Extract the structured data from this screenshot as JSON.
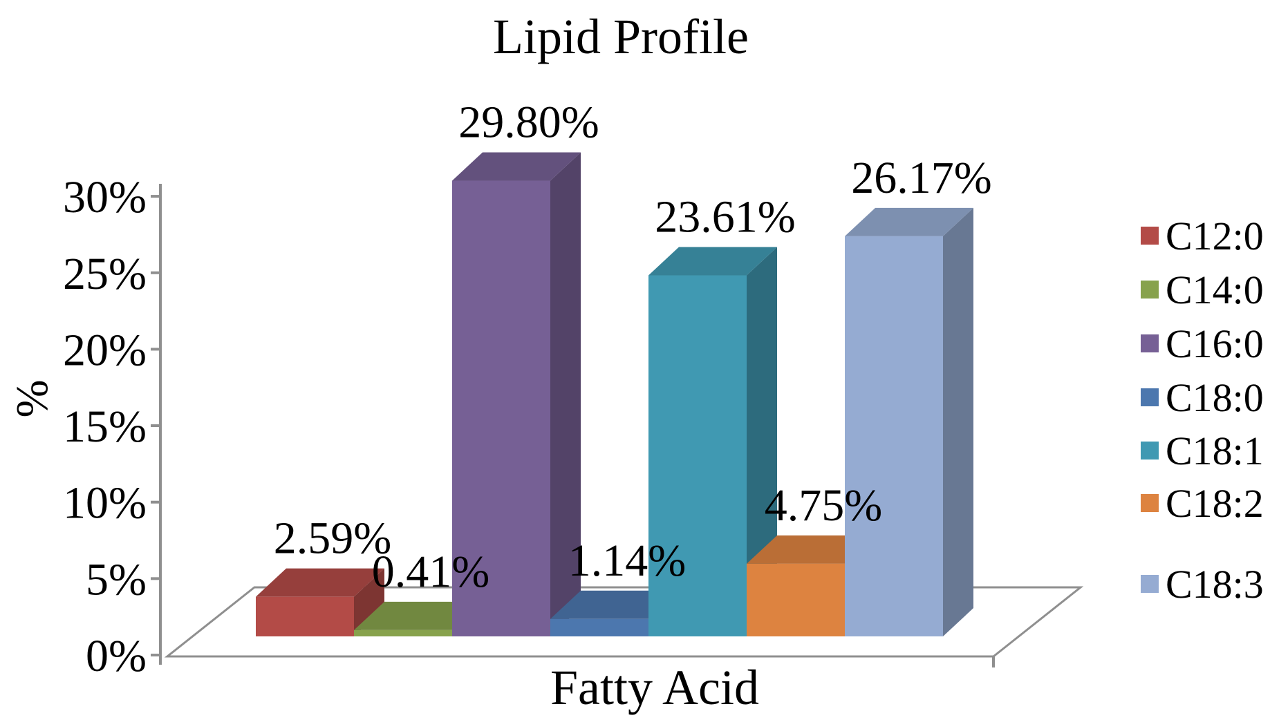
{
  "chart_data": {
    "type": "bar",
    "style": "3d",
    "title": "Lipid Profile",
    "xlabel": "Fatty Acid",
    "ylabel": "%",
    "ylim": [
      0,
      30
    ],
    "y_tick_step": 5,
    "y_ticks": [
      "0%",
      "5%",
      "10%",
      "15%",
      "20%",
      "25%",
      "30%"
    ],
    "categories": [
      "C12:0",
      "C14:0",
      "C16:0",
      "C18:0",
      "C18:1",
      "C18:2",
      "C18:3"
    ],
    "values": [
      2.59,
      0.41,
      29.8,
      1.14,
      23.61,
      4.75,
      26.17
    ],
    "data_labels": [
      "2.59%",
      "0.41%",
      "29.80%",
      "1.14%",
      "23.61%",
      "4.75%",
      "26.17%"
    ],
    "colors": [
      "#B34B47",
      "#87A24C",
      "#766095",
      "#4C77AE",
      "#4099B2",
      "#DD8340",
      "#95ABD2"
    ],
    "axis_color": "#8F8F8F",
    "legend_position": "right",
    "grid": false
  }
}
